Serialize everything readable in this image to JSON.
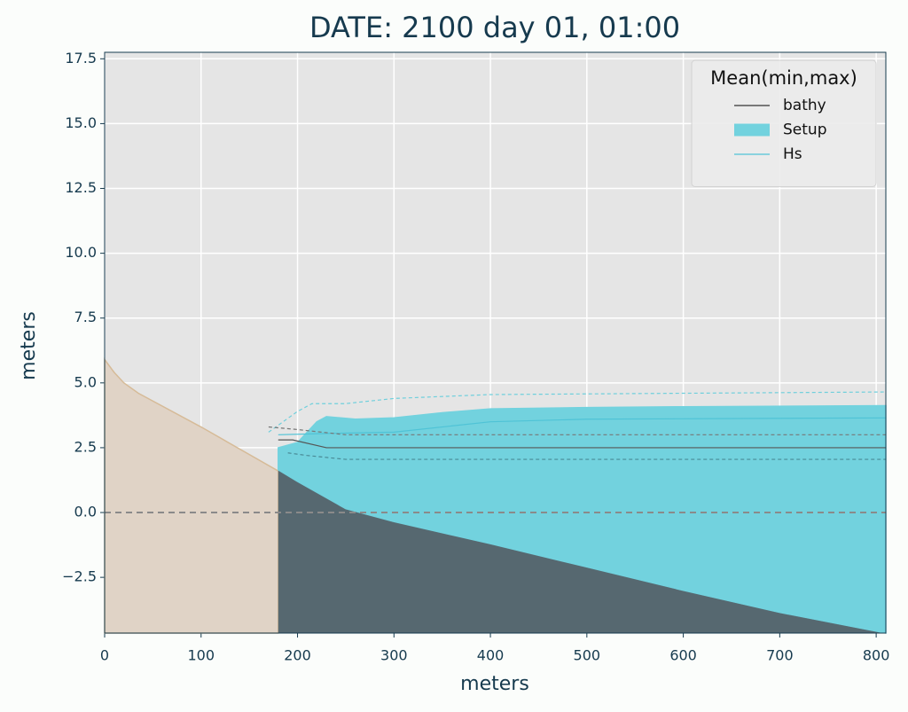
{
  "chart_data": {
    "type": "line",
    "title": "DATE: 2100 day 01, 01:00",
    "xlabel": "meters",
    "ylabel": "meters",
    "xlim": [
      0,
      810
    ],
    "ylim": [
      -4.65,
      17.75
    ],
    "xticks": [
      0,
      100,
      200,
      300,
      400,
      500,
      600,
      700,
      800
    ],
    "yticks": [
      {
        "value": -2.5,
        "label": "−2.5"
      },
      {
        "value": 0,
        "label": "0.0"
      },
      2.5,
      {
        "value": 5,
        "label": "5.0"
      },
      7.5,
      {
        "value": 10,
        "label": "10.0"
      },
      12.5,
      {
        "value": 15,
        "label": "15.0"
      },
      17.5
    ],
    "grid": true,
    "hline": {
      "value": 0,
      "color": "#8a8a8a",
      "dash": true
    },
    "legend": {
      "title": "Mean(min,max)",
      "corner": "upper right"
    },
    "series": [
      {
        "color": "#d6bb98",
        "fill": "#e0d3c6",
        "style": "fill",
        "x": [
          0,
          10,
          20,
          35,
          100,
          180
        ],
        "values": [
          5.9,
          5.4,
          5.0,
          4.6,
          3.3,
          1.6
        ]
      },
      {
        "name": "bathy",
        "color": "#333333",
        "fill": "#566870",
        "style": "line",
        "x": [
          180,
          200,
          250,
          300,
          400,
          500,
          600,
          700,
          810
        ],
        "values": [
          1.65,
          1.2,
          0.15,
          -0.35,
          -1.2,
          -2.1,
          -3.0,
          -3.85,
          -4.65
        ]
      },
      {
        "name": "Setup",
        "color": "#72d2de",
        "style": "fill",
        "fill_to_series": 1,
        "x": [
          180,
          200,
          220,
          230,
          260,
          300,
          350,
          400,
          500,
          600,
          810
        ],
        "values": [
          2.5,
          2.7,
          3.5,
          3.7,
          3.6,
          3.65,
          3.85,
          4.0,
          4.05,
          4.08,
          4.12
        ]
      },
      {
        "name": "Hs",
        "color": "#4fc3d6",
        "style": "line",
        "x": [
          180,
          230,
          300,
          400,
          500,
          810
        ],
        "values": [
          3.0,
          3.05,
          3.1,
          3.5,
          3.6,
          3.65
        ]
      },
      {
        "color": "#6fcfdc",
        "style": "dashed",
        "x": [
          170,
          200,
          215,
          250,
          300,
          400,
          600,
          810
        ],
        "values": [
          3.1,
          3.9,
          4.2,
          4.2,
          4.4,
          4.55,
          4.6,
          4.65
        ]
      },
      {
        "color": "#4a8a96",
        "style": "dashed",
        "x": [
          190,
          210,
          250,
          400,
          810
        ],
        "values": [
          2.3,
          2.2,
          2.05,
          2.05,
          2.05
        ]
      },
      {
        "color": "#555555",
        "style": "line",
        "x": [
          180,
          195,
          230,
          300,
          810
        ],
        "values": [
          2.8,
          2.8,
          2.5,
          2.5,
          2.5
        ]
      },
      {
        "color": "#777777",
        "style": "dashed",
        "x": [
          170,
          200,
          250,
          810
        ],
        "values": [
          3.3,
          3.2,
          3.0,
          3.0
        ]
      }
    ]
  }
}
